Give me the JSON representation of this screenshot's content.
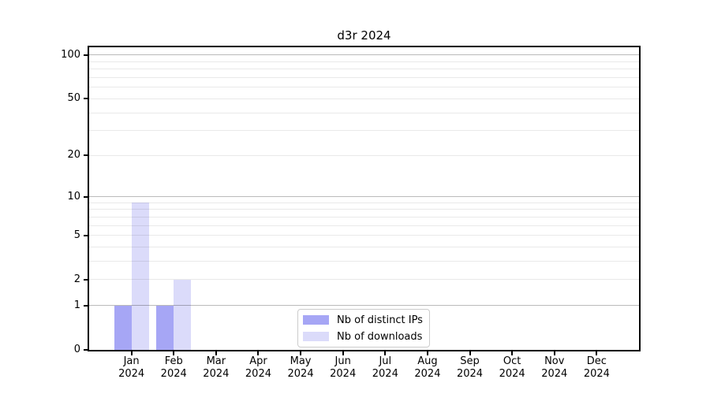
{
  "chart_data": {
    "type": "bar",
    "title": "d3r 2024",
    "x_year": "2024",
    "categories": [
      "Jan",
      "Feb",
      "Mar",
      "Apr",
      "May",
      "Jun",
      "Jul",
      "Aug",
      "Sep",
      "Oct",
      "Nov",
      "Dec"
    ],
    "series": [
      {
        "name": "Nb of distinct IPs",
        "color": "#a6a6f5",
        "values": [
          1,
          1,
          0,
          0,
          0,
          0,
          0,
          0,
          0,
          0,
          0,
          0
        ]
      },
      {
        "name": "Nb of downloads",
        "color": "#dbdbfa",
        "values": [
          9,
          2,
          0,
          0,
          0,
          0,
          0,
          0,
          0,
          0,
          0,
          0
        ]
      }
    ],
    "y_axis": {
      "scale": "log1p",
      "tick_values": [
        0,
        1,
        2,
        5,
        10,
        20,
        50,
        100
      ],
      "major_grid_values": [
        1,
        10,
        100
      ],
      "minor_grid_values": [
        2,
        3,
        4,
        5,
        6,
        7,
        8,
        9,
        20,
        30,
        40,
        50,
        60,
        70,
        80,
        90
      ],
      "range": [
        0,
        113
      ]
    },
    "legend": {
      "position": "lower center"
    },
    "colors": {
      "axis": "#000000",
      "major_grid": "#b6b6b6",
      "minor_grid": "#e9e9e9",
      "legend_border": "#cccccc",
      "background": "#ffffff"
    }
  }
}
